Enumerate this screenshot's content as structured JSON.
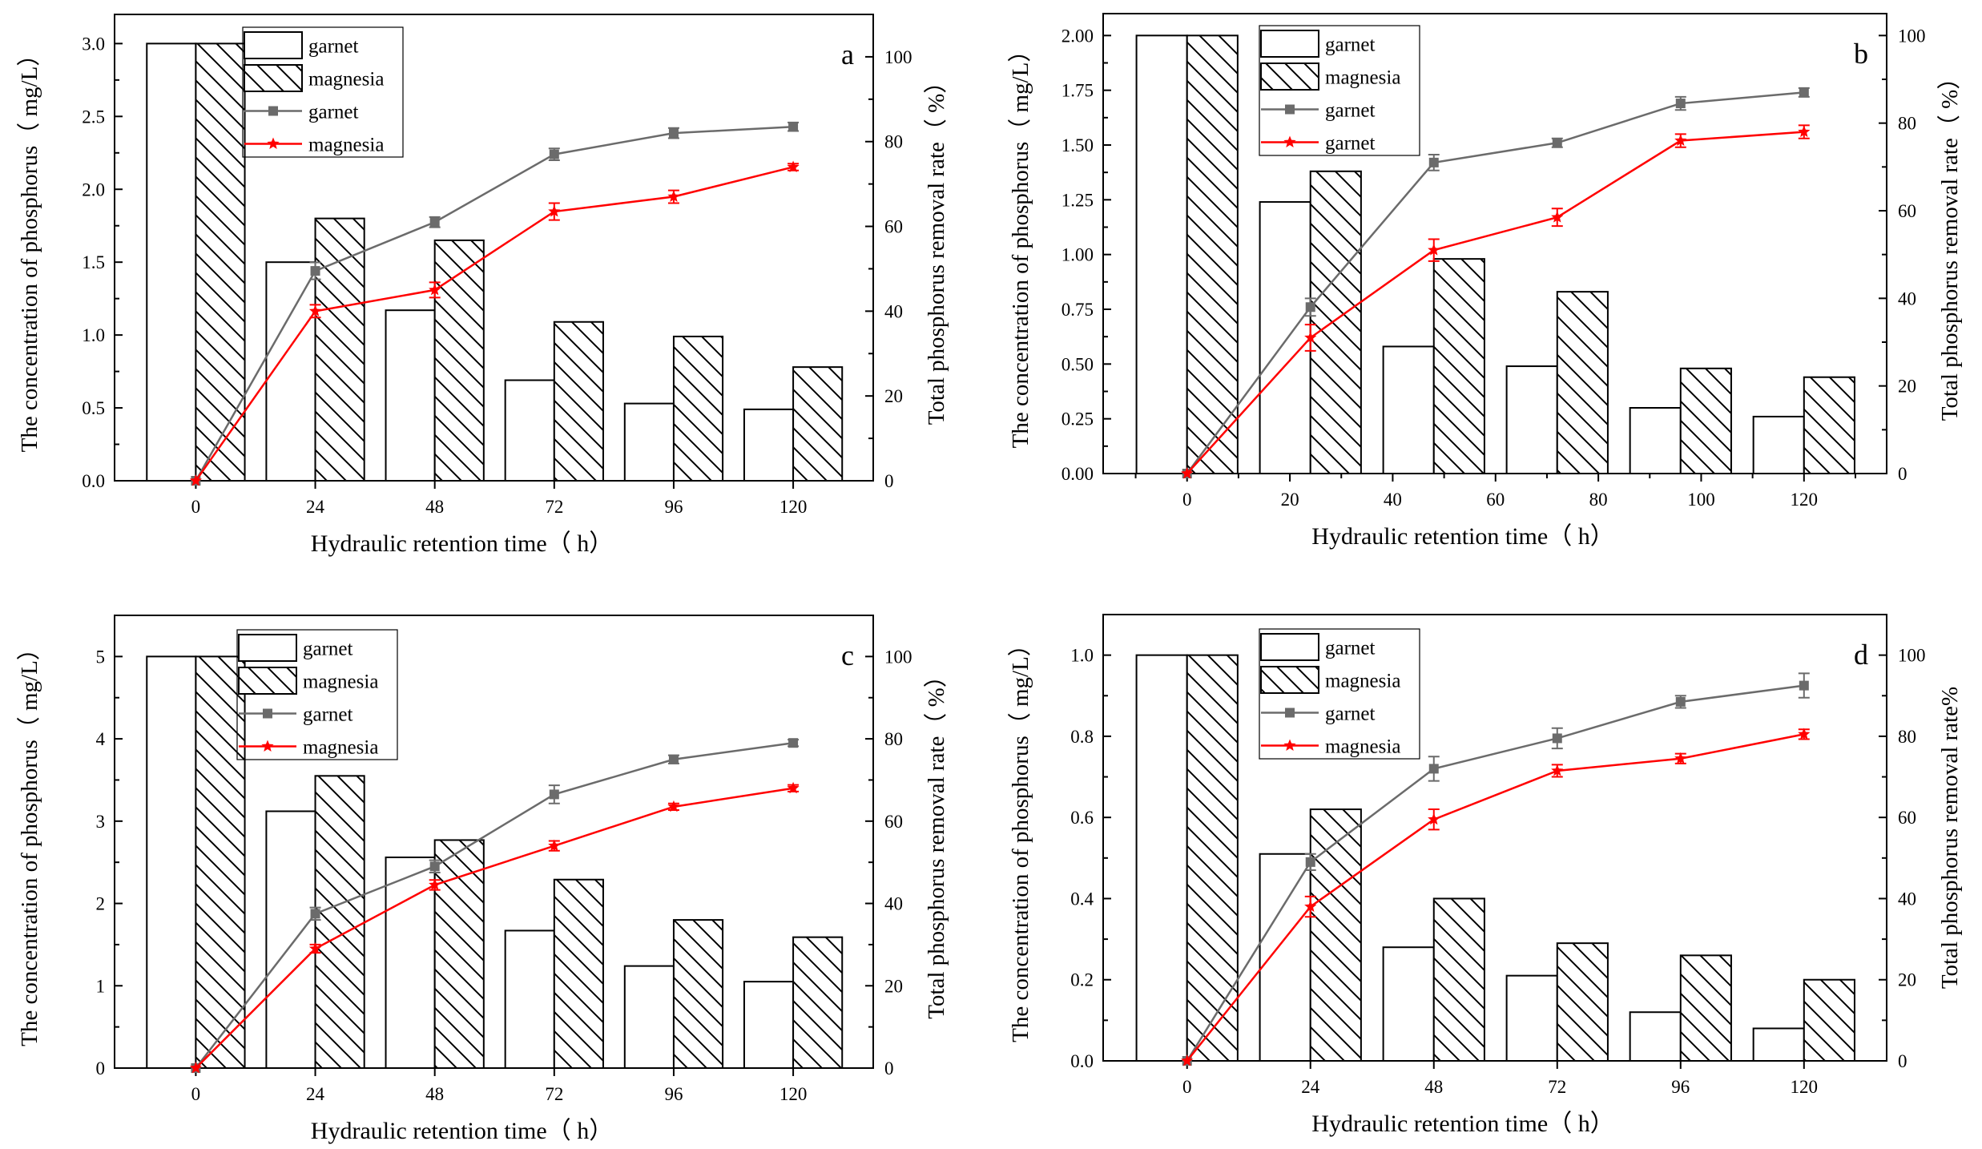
{
  "chart_data": [
    {
      "type": "bar",
      "panel_letter": "a",
      "xlabel": "Hydraulic retention time（ h）",
      "ylabel": "The concentration of phosphorus（ mg/L）",
      "ylabel_right": "Total phosphorus removal rate（ %）",
      "categories": [
        "0",
        "24",
        "48",
        "72",
        "96",
        "120"
      ],
      "x_ticks": [
        "0",
        "24",
        "48",
        "72",
        "96",
        "120"
      ],
      "ylim": [
        0,
        3.2
      ],
      "y_ticks": [
        "0.0",
        "0.5",
        "1.0",
        "1.5",
        "2.0",
        "2.5",
        "3.0"
      ],
      "y2lim": [
        0,
        110
      ],
      "y2_ticks": [
        "0",
        "20",
        "40",
        "60",
        "80",
        "100"
      ],
      "legend": [
        "garnet",
        "magnesia",
        "garnet",
        "magnesia"
      ],
      "bar_series": [
        {
          "name": "garnet",
          "values": [
            3.0,
            1.5,
            1.17,
            0.69,
            0.53,
            0.49
          ]
        },
        {
          "name": "magnesia",
          "values": [
            3.0,
            1.8,
            1.65,
            1.09,
            0.99,
            0.78
          ]
        }
      ],
      "line_series": [
        {
          "name": "garnet",
          "color": "#6b6b6b",
          "marker": "square",
          "values": [
            0,
            49.5,
            61,
            77,
            82,
            83.5
          ],
          "errors": [
            0,
            2,
            1.2,
            1.4,
            1.2,
            1
          ]
        },
        {
          "name": "magnesia",
          "color": "#ff0000",
          "marker": "star",
          "values": [
            0,
            40,
            45,
            63.5,
            67,
            74
          ],
          "errors": [
            0,
            1.5,
            1.8,
            2,
            1.5,
            0.8
          ]
        }
      ]
    },
    {
      "type": "bar",
      "panel_letter": "b",
      "xlabel": "Hydraulic retention time（ h）",
      "ylabel": "The concentration of phosphorus（ mg/L）",
      "ylabel_right": "Total phosphorus removal rate（ %）",
      "categories": [
        "0",
        "24",
        "48",
        "72",
        "96",
        "120"
      ],
      "x_ticks": [
        "0",
        "20",
        "40",
        "60",
        "80",
        "100",
        "120"
      ],
      "ylim": [
        0,
        2.1
      ],
      "y_ticks": [
        "0.00",
        "0.25",
        "0.50",
        "0.75",
        "1.00",
        "1.25",
        "1.50",
        "1.75",
        "2.00"
      ],
      "y2lim": [
        0,
        105
      ],
      "y2_ticks": [
        "0",
        "20",
        "40",
        "60",
        "80",
        "100"
      ],
      "legend": [
        "garnet",
        "magnesia",
        "garnet",
        "garnet"
      ],
      "bar_series": [
        {
          "name": "garnet",
          "values": [
            2.0,
            1.24,
            0.58,
            0.49,
            0.3,
            0.26
          ]
        },
        {
          "name": "magnesia",
          "values": [
            2.0,
            1.38,
            0.98,
            0.83,
            0.48,
            0.44
          ]
        }
      ],
      "line_series": [
        {
          "name": "garnet",
          "color": "#6b6b6b",
          "marker": "square",
          "values": [
            0,
            38,
            71,
            75.5,
            84.5,
            87
          ],
          "errors": [
            0,
            2,
            1.8,
            1,
            1.5,
            1
          ]
        },
        {
          "name": "garnet",
          "color": "#ff0000",
          "marker": "star",
          "values": [
            0,
            31,
            51,
            58.5,
            76,
            78
          ],
          "errors": [
            0,
            3,
            2.5,
            2,
            1.5,
            1.5
          ]
        }
      ]
    },
    {
      "type": "bar",
      "panel_letter": "c",
      "xlabel": "Hydraulic retention time（ h）",
      "ylabel": "The concentration of phosphorus（ mg/L）",
      "ylabel_right": "Total phosphorus removal rate（ %）",
      "categories": [
        "0",
        "24",
        "48",
        "72",
        "96",
        "120"
      ],
      "x_ticks": [
        "0",
        "24",
        "48",
        "72",
        "96",
        "120"
      ],
      "ylim": [
        0,
        5.5
      ],
      "y_ticks": [
        "0",
        "1",
        "2",
        "3",
        "4",
        "5"
      ],
      "y2lim": [
        0,
        110
      ],
      "y2_ticks": [
        "0",
        "20",
        "40",
        "60",
        "80",
        "100"
      ],
      "legend": [
        "garnet",
        "magnesia",
        "garnet",
        "magnesia"
      ],
      "bar_series": [
        {
          "name": "garnet",
          "values": [
            5.0,
            3.12,
            2.56,
            1.67,
            1.24,
            1.05
          ]
        },
        {
          "name": "magnesia",
          "values": [
            5.0,
            3.55,
            2.77,
            2.29,
            1.8,
            1.59
          ]
        }
      ],
      "line_series": [
        {
          "name": "garnet",
          "color": "#6b6b6b",
          "marker": "square",
          "values": [
            0,
            37.5,
            49,
            66.5,
            75,
            79
          ],
          "errors": [
            0,
            1.5,
            1.5,
            2.2,
            1,
            0.8
          ]
        },
        {
          "name": "magnesia",
          "color": "#ff0000",
          "marker": "star",
          "values": [
            0,
            29,
            44.5,
            54,
            63.5,
            68
          ],
          "errors": [
            0,
            1,
            1.2,
            1.2,
            0.8,
            0.8
          ]
        }
      ]
    },
    {
      "type": "bar",
      "panel_letter": "d",
      "xlabel": "Hydraulic retention time（ h）",
      "ylabel": "The concentration of phosphorus（ mg/L）",
      "ylabel_right": "Total phosphorus removal rate%",
      "categories": [
        "0",
        "24",
        "48",
        "72",
        "96",
        "120"
      ],
      "x_ticks": [
        "0",
        "24",
        "48",
        "72",
        "96",
        "120"
      ],
      "ylim": [
        0,
        1.1
      ],
      "y_ticks": [
        "0.0",
        "0.2",
        "0.4",
        "0.6",
        "0.8",
        "1.0"
      ],
      "y2lim": [
        0,
        110
      ],
      "y2_ticks": [
        "0",
        "20",
        "40",
        "60",
        "80",
        "100"
      ],
      "legend": [
        "garnet",
        "magnesia",
        "garnet",
        "magnesia"
      ],
      "bar_series": [
        {
          "name": "garnet",
          "values": [
            1.0,
            0.51,
            0.28,
            0.21,
            0.12,
            0.08
          ]
        },
        {
          "name": "magnesia",
          "values": [
            1.0,
            0.62,
            0.4,
            0.29,
            0.26,
            0.2
          ]
        }
      ],
      "line_series": [
        {
          "name": "garnet",
          "color": "#6b6b6b",
          "marker": "square",
          "values": [
            0,
            49,
            72,
            79.5,
            88.5,
            92.5
          ],
          "errors": [
            0,
            2,
            3,
            2.5,
            1.5,
            3
          ]
        },
        {
          "name": "magnesia",
          "color": "#ff0000",
          "marker": "star",
          "values": [
            0,
            38,
            59.5,
            71.5,
            74.5,
            80.5
          ],
          "errors": [
            0,
            2.5,
            2.5,
            1.5,
            1.2,
            1.2
          ]
        }
      ]
    }
  ]
}
